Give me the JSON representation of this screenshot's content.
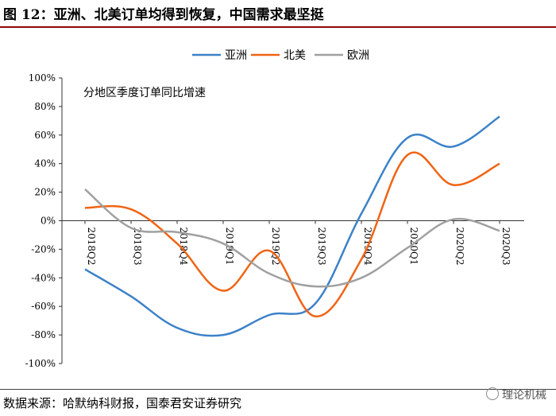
{
  "page": {
    "title": "图 12：亚洲、北美订单均得到恢复，中国需求最坚挺",
    "source": "数据来源：哈默纳科财报，国泰君安证券研究",
    "watermark": "理论机械"
  },
  "chart_data": {
    "type": "line",
    "annotation": "分地区季度订单同比增速",
    "categories": [
      "2018Q2",
      "2018Q3",
      "2018Q4",
      "2019Q1",
      "2019Q2",
      "2019Q3",
      "2019Q4",
      "2020Q1",
      "2020Q2",
      "2020Q3"
    ],
    "y_ticks": [
      "100%",
      "80%",
      "60%",
      "40%",
      "20%",
      "0%",
      "-20%",
      "-40%",
      "-60%",
      "-80%",
      "-100%"
    ],
    "ylim": [
      -100,
      100
    ],
    "y_unit": "%",
    "smooth": true,
    "legend_position": "top",
    "series": [
      {
        "name": "亚洲",
        "color": "#3c82c8",
        "values": [
          -34,
          -53,
          -75,
          -80,
          -66,
          -58,
          5,
          58,
          52,
          73
        ]
      },
      {
        "name": "北美",
        "color": "#f06414",
        "values": [
          9,
          8,
          -16,
          -49,
          -21,
          -67,
          -27,
          46,
          25,
          40
        ]
      },
      {
        "name": "欧洲",
        "color": "#a0a0a0",
        "values": [
          22,
          -5,
          -8,
          -16,
          -37,
          -46,
          -40,
          -19,
          1,
          -7
        ]
      }
    ]
  }
}
